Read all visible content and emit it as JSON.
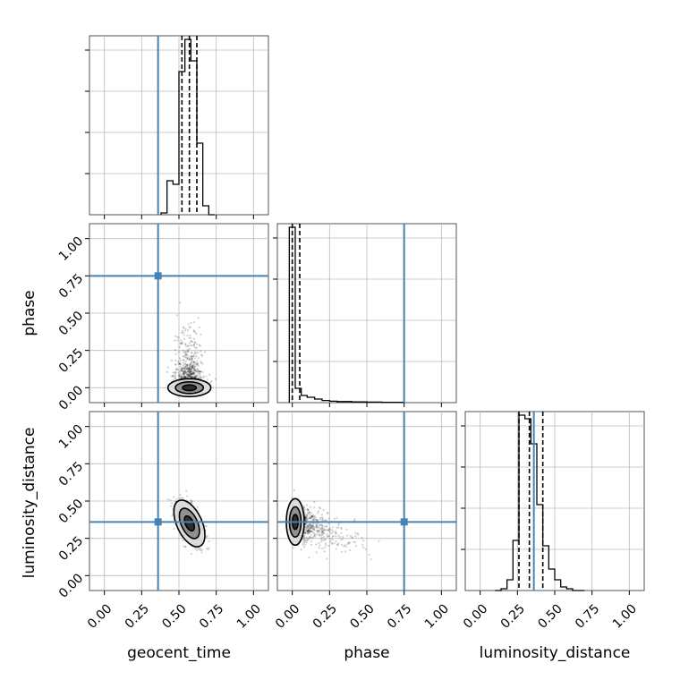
{
  "chart_data": {
    "type": "corner",
    "parameters": [
      "geocent_time",
      "phase",
      "luminosity_distance"
    ],
    "axis_labels": {
      "x": [
        "geocent_time",
        "phase",
        "luminosity_distance"
      ],
      "y": [
        "phase",
        "luminosity_distance"
      ]
    },
    "range": [
      -0.1,
      1.1
    ],
    "ticks": [
      0.0,
      0.25,
      0.5,
      0.75,
      1.0
    ],
    "tick_labels": [
      "0.00",
      "0.25",
      "0.50",
      "0.75",
      "1.00"
    ],
    "grid": true,
    "truths": {
      "geocent_time": 0.36,
      "phase": 0.75,
      "luminosity_distance": 0.36
    },
    "truth_color": "#4682b4",
    "histograms": [
      {
        "parameter": "geocent_time",
        "bins": [
          0.38,
          0.42,
          0.46,
          0.5,
          0.54,
          0.58,
          0.62,
          0.66,
          0.7,
          0.74
        ],
        "counts": [
          0.01,
          0.19,
          0.17,
          0.8,
          0.98,
          0.86,
          0.4,
          0.05,
          0.0
        ],
        "quantiles": [
          0.52,
          0.57,
          0.62
        ]
      },
      {
        "parameter": "phase",
        "bins": [
          -0.02,
          0.02,
          0.06,
          0.1,
          0.15,
          0.2,
          0.25,
          0.3,
          0.4,
          0.5,
          0.6,
          0.7,
          0.75
        ],
        "counts": [
          0.98,
          0.08,
          0.04,
          0.03,
          0.02,
          0.012,
          0.008,
          0.006,
          0.004,
          0.003,
          0.002,
          0.002
        ],
        "quantiles": [
          0.0,
          0.05
        ]
      },
      {
        "parameter": "luminosity_distance",
        "bins": [
          0.1,
          0.14,
          0.18,
          0.22,
          0.26,
          0.3,
          0.34,
          0.38,
          0.42,
          0.46,
          0.5,
          0.54,
          0.58,
          0.62,
          0.66,
          0.7
        ],
        "counts": [
          0.0,
          0.01,
          0.06,
          0.28,
          0.98,
          0.96,
          0.82,
          0.48,
          0.25,
          0.12,
          0.06,
          0.02,
          0.01,
          0.0,
          0.0
        ],
        "quantiles": [
          0.26,
          0.33,
          0.42
        ]
      }
    ],
    "scatter_panels": [
      {
        "x": "geocent_time",
        "y": "phase",
        "center": [
          0.57,
          0.0
        ],
        "contour_levels": 3
      },
      {
        "x": "geocent_time",
        "y": "luminosity_distance",
        "center": [
          0.57,
          0.35
        ],
        "contour_levels": 3
      },
      {
        "x": "phase",
        "y": "luminosity_distance",
        "center": [
          0.02,
          0.36
        ],
        "contour_levels": 3
      }
    ]
  }
}
